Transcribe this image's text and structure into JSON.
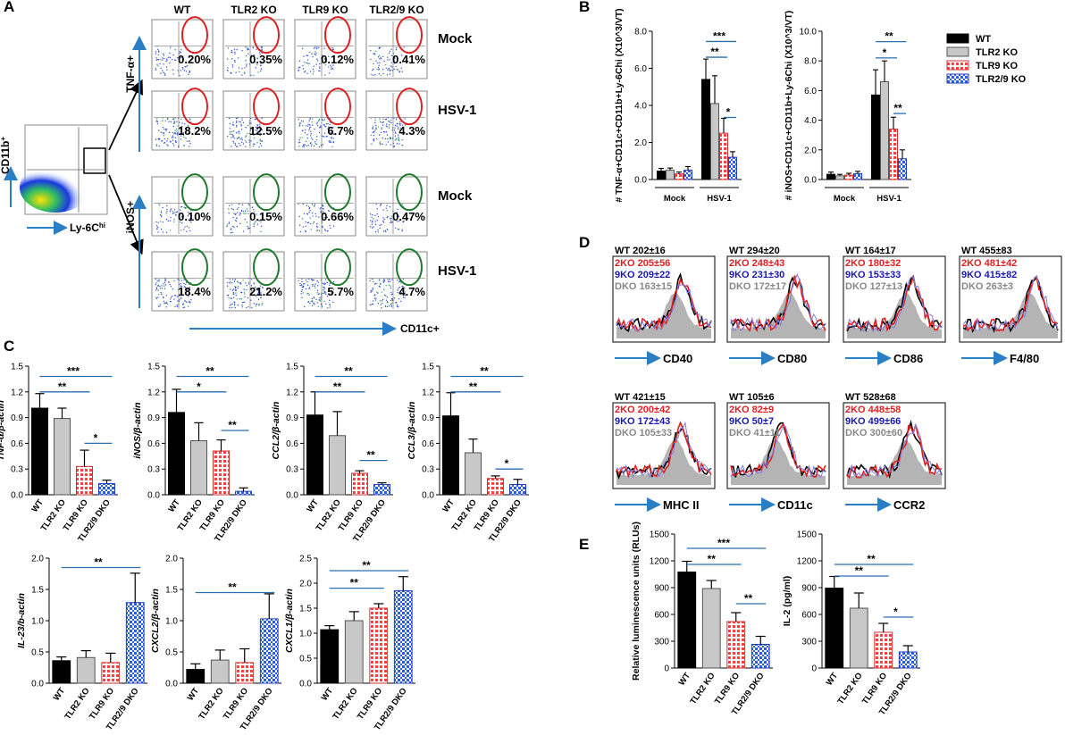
{
  "panel_letters": {
    "A": "A",
    "B": "B",
    "C": "C",
    "D": "D",
    "E": "E"
  },
  "colors": {
    "wt": "#000000",
    "tlr2": "#c8c8c8",
    "tlr9": "#ff6060",
    "tlr29": "#3a6ee8",
    "axis_arrow": "#2a7fc4",
    "gate_red": "#e02020",
    "gate_green": "#1f7a2a",
    "blue_ax": "#2a6fb0"
  },
  "panel_a": {
    "overview": {
      "y_label": "CD11b",
      "y_sup": "+",
      "x_label": "Ly-6C",
      "x_sup": "hi"
    },
    "columns": [
      "WT",
      "TLR2 KO",
      "TLR9 KO",
      "TLR2/9 KO"
    ],
    "rows": [
      {
        "label": "Mock",
        "values": [
          "0.20%",
          "0.35%",
          "0.12%",
          "0.41%"
        ]
      },
      {
        "label": "HSV-1",
        "values": [
          "18.2%",
          "12.5%",
          "6.7%",
          "4.3%"
        ]
      },
      {
        "label": "Mock",
        "values": [
          "0.10%",
          "0.15%",
          "0.66%",
          "0.47%"
        ]
      },
      {
        "label": "HSV-1",
        "values": [
          "18.4%",
          "21.2%",
          "5.7%",
          "4.7%"
        ]
      }
    ],
    "y_markers": [
      "TNF-α+",
      "iNOS+"
    ],
    "x_marker": "CD11c+"
  },
  "chart_data": [
    {
      "id": "B1",
      "type": "bar",
      "groups": [
        "Mock",
        "HSV-1"
      ],
      "series": [
        {
          "name": "WT",
          "values": [
            0.45,
            5.4
          ],
          "err": [
            0.15,
            1.1
          ]
        },
        {
          "name": "TLR2 KO",
          "values": [
            0.5,
            4.1
          ],
          "err": [
            0.12,
            1.5
          ]
        },
        {
          "name": "TLR9 KO",
          "values": [
            0.3,
            2.5
          ],
          "err": [
            0.1,
            0.8
          ]
        },
        {
          "name": "TLR2/9 KO",
          "values": [
            0.5,
            1.2
          ],
          "err": [
            0.2,
            0.3
          ]
        }
      ],
      "ylabel": "# TNF-α+CD11c+CD11b+Ly-6Chi (X10^3/VT)",
      "ylim": [
        0,
        8
      ],
      "yticks": [
        "0.0",
        "2.0",
        "4.0",
        "6.0",
        "8.0"
      ],
      "sig": [
        "***",
        "**",
        "*"
      ]
    },
    {
      "id": "B2",
      "type": "bar",
      "groups": [
        "Mock",
        "HSV-1"
      ],
      "series": [
        {
          "name": "WT",
          "values": [
            0.35,
            5.7
          ],
          "err": [
            0.15,
            1.7
          ]
        },
        {
          "name": "TLR2 KO",
          "values": [
            0.25,
            6.6
          ],
          "err": [
            0.1,
            1.4
          ]
        },
        {
          "name": "TLR9 KO",
          "values": [
            0.3,
            3.4
          ],
          "err": [
            0.12,
            0.8
          ]
        },
        {
          "name": "TLR2/9 KO",
          "values": [
            0.4,
            1.4
          ],
          "err": [
            0.15,
            0.6
          ]
        }
      ],
      "ylabel": "# iNOS+CD11c+CD11b+Ly-6Chi (X10^3/VT)",
      "ylim": [
        0,
        10
      ],
      "yticks": [
        "0.0",
        "2.0",
        "4.0",
        "6.0",
        "8.0",
        "10.0"
      ],
      "sig": [
        "**",
        "*",
        "**"
      ]
    },
    {
      "id": "C1",
      "type": "bar",
      "ylabel": "TNF-α/β-actin",
      "ylim": [
        0,
        1.5
      ],
      "yticks": [
        "0.0",
        "0.3",
        "0.6",
        "0.9",
        "1.2",
        "1.5"
      ],
      "categories": [
        "WT",
        "TLR2 KO",
        "TLR9 KO",
        "TLR2/9 DKO"
      ],
      "values": [
        1.01,
        0.89,
        0.33,
        0.13
      ],
      "err": [
        0.17,
        0.12,
        0.19,
        0.04
      ],
      "sig": [
        "***",
        "**",
        "*"
      ]
    },
    {
      "id": "C2",
      "type": "bar",
      "ylabel": "iNOS/β-actin",
      "ylim": [
        0,
        1.5
      ],
      "yticks": [
        "0.0",
        "0.3",
        "0.6",
        "0.9",
        "1.2",
        "1.5"
      ],
      "categories": [
        "WT",
        "TLR2 KO",
        "TLR9 KO",
        "TLR2/9 DKO"
      ],
      "values": [
        0.96,
        0.63,
        0.51,
        0.04
      ],
      "err": [
        0.27,
        0.21,
        0.13,
        0.04
      ],
      "sig": [
        "**",
        "*",
        "**"
      ]
    },
    {
      "id": "C3",
      "type": "bar",
      "ylabel": "CCL2/β-actin",
      "ylim": [
        0,
        1.5
      ],
      "yticks": [
        "0.0",
        "0.3",
        "0.6",
        "0.9",
        "1.2",
        "1.5"
      ],
      "categories": [
        "WT",
        "TLR2 KO",
        "TLR9 KO",
        "TLR2/9 DKO"
      ],
      "values": [
        0.93,
        0.69,
        0.25,
        0.12
      ],
      "err": [
        0.27,
        0.28,
        0.03,
        0.02
      ],
      "sig": [
        "**",
        "**",
        "**"
      ]
    },
    {
      "id": "C4",
      "type": "bar",
      "ylabel": "CCL3/β-actin",
      "ylim": [
        0,
        1.5
      ],
      "yticks": [
        "0.0",
        "0.3",
        "0.6",
        "0.9",
        "1.2",
        "1.5"
      ],
      "categories": [
        "WT",
        "TLR2 KO",
        "TLR9 KO",
        "TLR2/9 DKO"
      ],
      "values": [
        0.92,
        0.49,
        0.19,
        0.12
      ],
      "err": [
        0.27,
        0.16,
        0.03,
        0.06
      ],
      "sig": [
        "**",
        "**",
        "*"
      ]
    },
    {
      "id": "C5",
      "type": "bar",
      "ylabel": "IL-23/b-actin",
      "ylim": [
        0,
        2.0
      ],
      "yticks": [
        "0.0",
        "0.5",
        "1.0",
        "1.5",
        "2.0"
      ],
      "categories": [
        "WT",
        "TLR2 KO",
        "TLR9 KO",
        "TLR2/9 DKO"
      ],
      "values": [
        0.36,
        0.41,
        0.33,
        1.29
      ],
      "err": [
        0.06,
        0.11,
        0.15,
        0.47
      ],
      "sig": [
        "**"
      ]
    },
    {
      "id": "C6",
      "type": "bar",
      "ylabel": "CXCL2/β-actin",
      "ylim": [
        0,
        2.0
      ],
      "yticks": [
        "0.0",
        "0.5",
        "1.0",
        "1.5",
        "2.0"
      ],
      "categories": [
        "WT",
        "TLR2 KO",
        "TLR9 KO",
        "TLR2/9 DKO"
      ],
      "values": [
        0.22,
        0.37,
        0.33,
        1.03
      ],
      "err": [
        0.09,
        0.16,
        0.22,
        0.4
      ],
      "sig": [
        "**"
      ]
    },
    {
      "id": "C7",
      "type": "bar",
      "ylabel": "CXCL1/β-actin",
      "ylim": [
        0,
        2.5
      ],
      "yticks": [
        "0.0",
        "0.5",
        "1.0",
        "1.5",
        "2.0",
        "2.5"
      ],
      "categories": [
        "WT",
        "TLR2 KO",
        "TLR9 KO",
        "TLR2/9 DKO"
      ],
      "values": [
        1.07,
        1.25,
        1.5,
        1.85
      ],
      "err": [
        0.08,
        0.18,
        0.09,
        0.28
      ],
      "sig": [
        "**",
        "**"
      ]
    },
    {
      "id": "E1",
      "type": "bar",
      "ylabel": "Relative luminescence units (RLUs)",
      "ylim": [
        0,
        1500
      ],
      "yticks": [
        "0",
        "300",
        "600",
        "900",
        "1200",
        "1500"
      ],
      "categories": [
        "WT",
        "TLR2 KO",
        "TLR9 KO",
        "TLR2/9 DKO"
      ],
      "values": [
        1075,
        890,
        520,
        265
      ],
      "err": [
        120,
        90,
        100,
        90
      ],
      "sig": [
        "***",
        "**",
        "**"
      ]
    },
    {
      "id": "E2",
      "type": "bar",
      "ylabel": "IL-2 (pg/ml)",
      "ylim": [
        0,
        1500
      ],
      "yticks": [
        "0",
        "300",
        "600",
        "900",
        "1200",
        "1500"
      ],
      "categories": [
        "WT",
        "TLR2 KO",
        "TLR9 KO",
        "TLR2/9 DKO"
      ],
      "values": [
        895,
        670,
        400,
        180
      ],
      "err": [
        130,
        170,
        100,
        70
      ],
      "sig": [
        "**",
        "**",
        "*"
      ]
    }
  ],
  "legend": [
    "WT",
    "TLR2 KO",
    "TLR9 KO",
    "TLR2/9 KO"
  ],
  "panel_d": {
    "histograms": [
      {
        "marker": "CD40",
        "wt": "WT 202±16",
        "ko2": "2KO 205±56",
        "ko9": "9KO 209±22",
        "dko": "DKO 163±15"
      },
      {
        "marker": "CD80",
        "wt": "WT 294±20",
        "ko2": "2KO 248±43",
        "ko9": "9KO 231±30",
        "dko": "DKO 172±17"
      },
      {
        "marker": "CD86",
        "wt": "WT 164±17",
        "ko2": "2KO 180±32",
        "ko9": "9KO 153±33",
        "dko": "DKO 127±13"
      },
      {
        "marker": "F4/80",
        "wt": "WT 455±83",
        "ko2": "2KO 481±42",
        "ko9": "9KO 415±82",
        "dko": "DKO 263±3"
      },
      {
        "marker": "MHC II",
        "wt": "WT 421±15",
        "ko2": "2KO 200±42",
        "ko9": "9KO 172±43",
        "dko": "DKO 105±33"
      },
      {
        "marker": "CD11c",
        "wt": "WT 105±6",
        "ko2": "2KO 82±9",
        "ko9": "9KO 50±7",
        "dko": "DKO 41±11"
      },
      {
        "marker": "CCR2",
        "wt": "WT 528±68",
        "ko2": "2KO 448±58",
        "ko9": "9KO 499±66",
        "dko": "DKO 300±60"
      }
    ]
  }
}
